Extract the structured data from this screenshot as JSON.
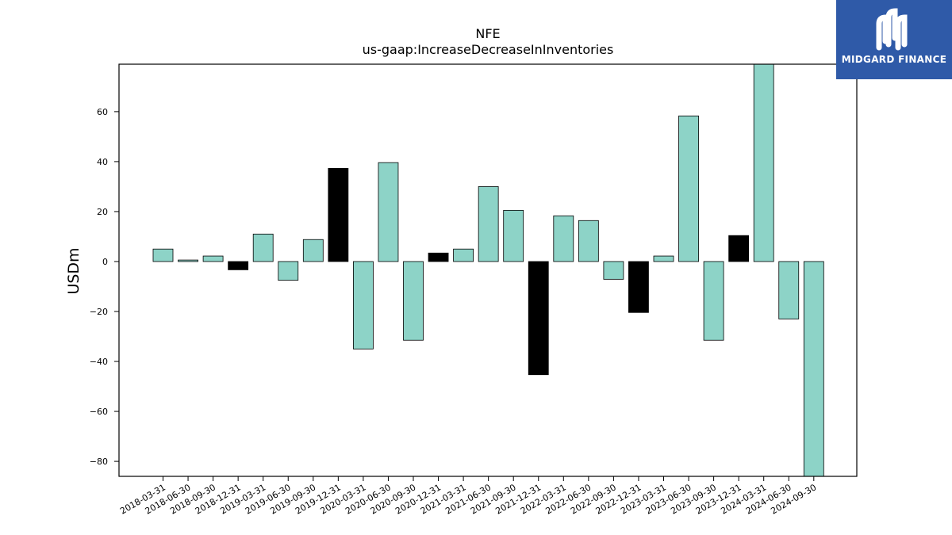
{
  "logo": {
    "text": "MIDGARD FINANCE",
    "background": "#2f5aa8",
    "foreground": "#ffffff"
  },
  "chart_data": {
    "type": "bar",
    "title": "NFE",
    "subtitle": "us-gaap:IncreaseDecreaseInInventories",
    "xlabel": "",
    "ylabel": "USDm",
    "ylim": [
      -86,
      79
    ],
    "yticks": [
      -80,
      -60,
      -40,
      -20,
      0,
      20,
      40,
      60
    ],
    "grid": false,
    "legend": "none",
    "colors": {
      "default": "#8dd3c7",
      "highlight": "#000000",
      "edge": "#000000"
    },
    "categories": [
      "2018-03-31",
      "2018-06-30",
      "2018-09-30",
      "2018-12-31",
      "2019-03-31",
      "2019-06-30",
      "2019-09-30",
      "2019-12-31",
      "2020-03-31",
      "2020-06-30",
      "2020-09-30",
      "2020-12-31",
      "2021-03-31",
      "2021-06-30",
      "2021-09-30",
      "2021-12-31",
      "2022-03-31",
      "2022-06-30",
      "2022-09-30",
      "2022-12-31",
      "2023-03-31",
      "2023-06-30",
      "2023-09-30",
      "2023-12-31",
      "2024-03-31",
      "2024-06-30",
      "2024-09-30"
    ],
    "values": [
      5,
      0.6,
      2.2,
      -3.3,
      11,
      -7.5,
      8.8,
      37.3,
      -35,
      39.6,
      -31.5,
      3.4,
      5,
      30,
      20.5,
      -45.3,
      18.3,
      16.4,
      -7.1,
      -20.4,
      2.2,
      58.3,
      -31.5,
      10.4,
      79,
      -23,
      -86
    ],
    "highlighted": [
      false,
      false,
      false,
      true,
      false,
      false,
      false,
      true,
      false,
      false,
      false,
      true,
      false,
      false,
      false,
      true,
      false,
      false,
      false,
      true,
      false,
      false,
      false,
      true,
      false,
      false,
      false
    ]
  }
}
